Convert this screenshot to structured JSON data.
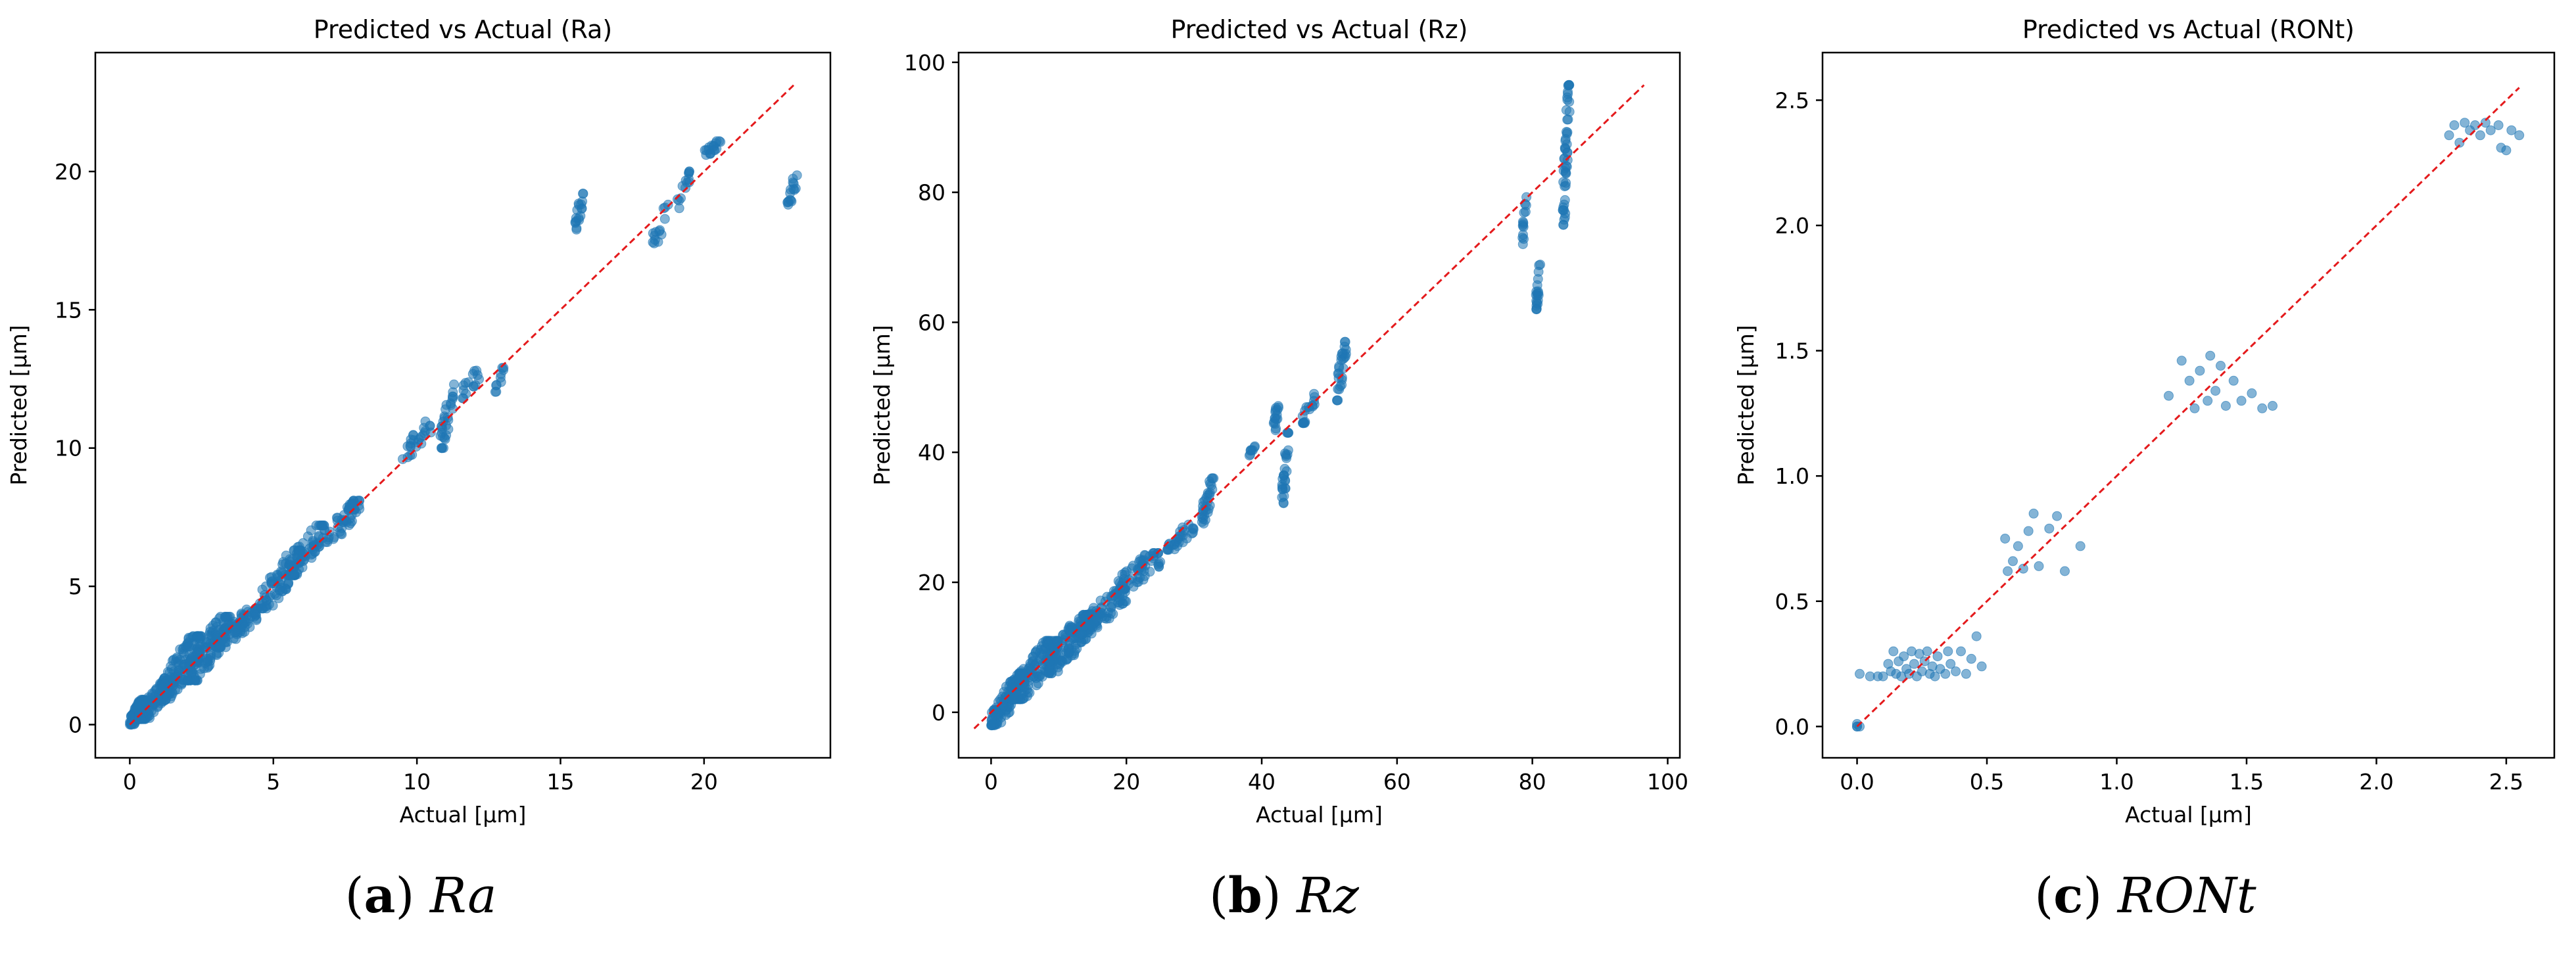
{
  "figure": {
    "captions": [
      {
        "label": "a",
        "name": "Ra"
      },
      {
        "label": "b",
        "name": "Rz"
      },
      {
        "label": "c",
        "name": "RONt"
      }
    ]
  },
  "colors": {
    "points": "#1f77b4",
    "reference_line": "#e41a1c",
    "axes": "#000000"
  },
  "chart_data": [
    {
      "type": "scatter",
      "title": "Predicted vs Actual (Ra)",
      "xlabel": "Actual [μm]",
      "ylabel": "Predicted [μm]",
      "xlim": [
        -1.2,
        24.4
      ],
      "ylim": [
        -1.2,
        24.3
      ],
      "xticks": [
        0,
        5,
        10,
        15,
        20
      ],
      "yticks": [
        0,
        5,
        10,
        15,
        20
      ],
      "reference_line": {
        "x": [
          0,
          23.2
        ],
        "y": [
          0,
          23.2
        ]
      },
      "point_clusters": [
        {
          "x": [
            0.0,
            0.5
          ],
          "y": [
            0.0,
            0.9
          ],
          "n": 90
        },
        {
          "x": [
            0.3,
            1.5
          ],
          "y": [
            0.2,
            1.6
          ],
          "n": 110
        },
        {
          "x": [
            1.0,
            2.5
          ],
          "y": [
            0.9,
            3.2
          ],
          "n": 130
        },
        {
          "x": [
            2.0,
            3.5
          ],
          "y": [
            1.6,
            3.9
          ],
          "n": 120
        },
        {
          "x": [
            3.0,
            4.5
          ],
          "y": [
            2.8,
            4.2
          ],
          "n": 80
        },
        {
          "x": [
            4.5,
            6.0
          ],
          "y": [
            4.2,
            6.3
          ],
          "n": 80
        },
        {
          "x": [
            5.5,
            6.8
          ],
          "y": [
            5.4,
            7.2
          ],
          "n": 70
        },
        {
          "x": [
            6.8,
            8.0
          ],
          "y": [
            6.6,
            8.1
          ],
          "n": 50
        },
        {
          "x": [
            9.5,
            10.5
          ],
          "y": [
            9.6,
            11.0
          ],
          "n": 25
        },
        {
          "x": [
            10.8,
            11.3
          ],
          "y": [
            10.0,
            12.3
          ],
          "n": 30
        },
        {
          "x": [
            11.5,
            12.2
          ],
          "y": [
            11.8,
            12.8
          ],
          "n": 15
        },
        {
          "x": [
            12.6,
            13.1
          ],
          "y": [
            12.0,
            12.9
          ],
          "n": 10
        },
        {
          "x": [
            15.5,
            15.8
          ],
          "y": [
            17.9,
            19.2
          ],
          "n": 18
        },
        {
          "x": [
            18.2,
            18.8
          ],
          "y": [
            17.4,
            18.8
          ],
          "n": 14
        },
        {
          "x": [
            19.0,
            19.5
          ],
          "y": [
            18.6,
            20.0
          ],
          "n": 14
        },
        {
          "x": [
            20.0,
            20.6
          ],
          "y": [
            20.6,
            21.1
          ],
          "n": 18
        },
        {
          "x": [
            22.9,
            23.3
          ],
          "y": [
            18.8,
            20.1
          ],
          "n": 16
        }
      ]
    },
    {
      "type": "scatter",
      "title": "Predicted vs Actual (Rz)",
      "xlabel": "Actual [μm]",
      "ylabel": "Predicted [μm]",
      "xlim": [
        -4.8,
        101.8
      ],
      "ylim": [
        -7.0,
        101.5
      ],
      "xticks": [
        0,
        20,
        40,
        60,
        80,
        100
      ],
      "yticks": [
        0,
        20,
        40,
        60,
        80,
        100
      ],
      "reference_line": {
        "x": [
          -2.5,
          96.5
        ],
        "y": [
          -2.5,
          96.5
        ]
      },
      "point_clusters": [
        {
          "x": [
            0.0,
            5.0
          ],
          "y": [
            -2.0,
            6.0
          ],
          "n": 110
        },
        {
          "x": [
            3.0,
            10.0
          ],
          "y": [
            2.0,
            11.0
          ],
          "n": 140
        },
        {
          "x": [
            8.0,
            15.0
          ],
          "y": [
            6.0,
            15.0
          ],
          "n": 130
        },
        {
          "x": [
            13.0,
            20.0
          ],
          "y": [
            12.0,
            19.0
          ],
          "n": 80
        },
        {
          "x": [
            18.0,
            25.0
          ],
          "y": [
            18.0,
            24.5
          ],
          "n": 60
        },
        {
          "x": [
            26.0,
            30.0
          ],
          "y": [
            25.0,
            29.0
          ],
          "n": 30
        },
        {
          "x": [
            31.0,
            33.0
          ],
          "y": [
            29.0,
            36.0
          ],
          "n": 30
        },
        {
          "x": [
            38.0,
            39.0
          ],
          "y": [
            39.5,
            41.0
          ],
          "n": 8
        },
        {
          "x": [
            41.5,
            42.5
          ],
          "y": [
            42.0,
            47.5
          ],
          "n": 16
        },
        {
          "x": [
            43.0,
            44.0
          ],
          "y": [
            32.0,
            43.0
          ],
          "n": 28
        },
        {
          "x": [
            46.0,
            48.0
          ],
          "y": [
            44.5,
            49.0
          ],
          "n": 18
        },
        {
          "x": [
            51.0,
            52.5
          ],
          "y": [
            48.0,
            57.0
          ],
          "n": 28
        },
        {
          "x": [
            78.5,
            79.2
          ],
          "y": [
            72.0,
            80.0
          ],
          "n": 14
        },
        {
          "x": [
            80.5,
            81.2
          ],
          "y": [
            62.0,
            69.0
          ],
          "n": 20
        },
        {
          "x": [
            84.5,
            85.5
          ],
          "y": [
            75.0,
            96.5
          ],
          "n": 50
        }
      ]
    },
    {
      "type": "scatter",
      "title": "Predicted vs Actual (RONt)",
      "xlabel": "Actual [μm]",
      "ylabel": "Predicted [μm]",
      "xlim": [
        -0.133,
        2.685
      ],
      "ylim": [
        -0.125,
        2.69
      ],
      "xticks": [
        0.0,
        0.5,
        1.0,
        1.5,
        2.0,
        2.5
      ],
      "yticks": [
        0.0,
        0.5,
        1.0,
        1.5,
        2.0,
        2.5
      ],
      "reference_line": {
        "x": [
          0.0,
          2.55
        ],
        "y": [
          0.0,
          2.55
        ]
      },
      "points": [
        [
          0.0,
          0.0
        ],
        [
          0.0,
          0.0
        ],
        [
          0.0,
          0.01
        ],
        [
          0.01,
          0.0
        ],
        [
          0.01,
          0.21
        ],
        [
          0.05,
          0.2
        ],
        [
          0.08,
          0.2
        ],
        [
          0.1,
          0.2
        ],
        [
          0.12,
          0.25
        ],
        [
          0.13,
          0.22
        ],
        [
          0.14,
          0.3
        ],
        [
          0.15,
          0.21
        ],
        [
          0.16,
          0.26
        ],
        [
          0.17,
          0.2
        ],
        [
          0.18,
          0.28
        ],
        [
          0.19,
          0.23
        ],
        [
          0.2,
          0.21
        ],
        [
          0.21,
          0.3
        ],
        [
          0.22,
          0.25
        ],
        [
          0.23,
          0.2
        ],
        [
          0.24,
          0.29
        ],
        [
          0.25,
          0.22
        ],
        [
          0.26,
          0.26
        ],
        [
          0.27,
          0.3
        ],
        [
          0.28,
          0.21
        ],
        [
          0.29,
          0.24
        ],
        [
          0.3,
          0.2
        ],
        [
          0.31,
          0.28
        ],
        [
          0.32,
          0.23
        ],
        [
          0.34,
          0.21
        ],
        [
          0.35,
          0.3
        ],
        [
          0.36,
          0.25
        ],
        [
          0.38,
          0.22
        ],
        [
          0.4,
          0.3
        ],
        [
          0.42,
          0.21
        ],
        [
          0.44,
          0.27
        ],
        [
          0.46,
          0.36
        ],
        [
          0.48,
          0.24
        ],
        [
          0.57,
          0.75
        ],
        [
          0.58,
          0.62
        ],
        [
          0.6,
          0.66
        ],
        [
          0.62,
          0.72
        ],
        [
          0.64,
          0.63
        ],
        [
          0.66,
          0.78
        ],
        [
          0.68,
          0.85
        ],
        [
          0.7,
          0.64
        ],
        [
          0.74,
          0.79
        ],
        [
          0.77,
          0.84
        ],
        [
          0.8,
          0.62
        ],
        [
          0.86,
          0.72
        ],
        [
          1.2,
          1.32
        ],
        [
          1.25,
          1.46
        ],
        [
          1.28,
          1.38
        ],
        [
          1.3,
          1.27
        ],
        [
          1.32,
          1.42
        ],
        [
          1.35,
          1.3
        ],
        [
          1.36,
          1.48
        ],
        [
          1.38,
          1.34
        ],
        [
          1.4,
          1.44
        ],
        [
          1.42,
          1.28
        ],
        [
          1.45,
          1.38
        ],
        [
          1.48,
          1.3
        ],
        [
          1.52,
          1.33
        ],
        [
          1.56,
          1.27
        ],
        [
          1.6,
          1.28
        ],
        [
          2.28,
          2.36
        ],
        [
          2.3,
          2.4
        ],
        [
          2.32,
          2.33
        ],
        [
          2.34,
          2.41
        ],
        [
          2.36,
          2.38
        ],
        [
          2.38,
          2.4
        ],
        [
          2.4,
          2.36
        ],
        [
          2.42,
          2.41
        ],
        [
          2.44,
          2.38
        ],
        [
          2.47,
          2.4
        ],
        [
          2.48,
          2.31
        ],
        [
          2.5,
          2.3
        ],
        [
          2.52,
          2.38
        ],
        [
          2.55,
          2.36
        ]
      ]
    }
  ]
}
